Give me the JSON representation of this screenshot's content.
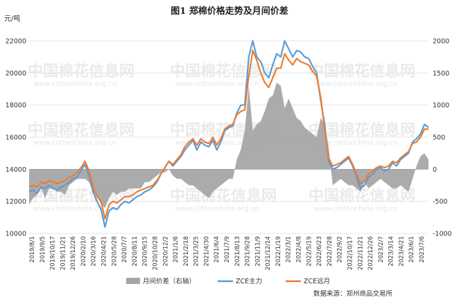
{
  "chart_data": {
    "type": "line",
    "title": "图1  郑棉价格走势及月间价差",
    "left_unit": "元/吨",
    "source": "数据来源：郑州商品交易所",
    "watermark": {
      "name": "中国棉花信息网",
      "url": "www.cottonchina.org.cn"
    },
    "y_left": {
      "ylim": [
        10000,
        22000
      ],
      "ticks": [
        "10000",
        "12000",
        "14000",
        "16000",
        "18000",
        "20000",
        "22000"
      ]
    },
    "y_right": {
      "ylim": [
        -1000,
        2000
      ],
      "ticks": [
        "-1000",
        "-500",
        "0",
        "500",
        "1000",
        "1500",
        "2000"
      ]
    },
    "x_ticks": [
      "2019/8/1",
      "2019/9/5",
      "2019/10/17",
      "2019/11/21",
      "2019/12/26",
      "2020/2/10",
      "2020/3/16",
      "2020/4/21",
      "2020/5/28",
      "2020/7/7",
      "2020/8/11",
      "2020/9/15",
      "2020/10/28",
      "2020/12/2",
      "2021/1/6",
      "2021/2/18",
      "2021/3/25",
      "2021/4/30",
      "2021/6/4",
      "2021/7/9",
      "2021/8/13",
      "2021/9/28",
      "2021/11/9",
      "2021/12/14",
      "2022/1/19",
      "2022/3/1",
      "2022/4/8",
      "2022/5/19",
      "2022/6/23",
      "2022/7/28",
      "2022/9/2",
      "2022/10/17",
      "2022/11/21",
      "2022/12/26",
      "2023/2/7",
      "2023/3/14",
      "2023/4/21",
      "2023/6/1",
      "2023/7/6"
    ],
    "legend": [
      "月间价差（右轴）",
      "ZCE主力",
      "ZCE远月"
    ],
    "colors": {
      "spread": "#a6a6a6",
      "main": "#5b9bd5",
      "far": "#ed7d31"
    },
    "x_range": [
      0,
      100
    ],
    "series": [
      {
        "name": "ZCE主力",
        "axis": "left",
        "points": [
          [
            0,
            12600
          ],
          [
            1,
            12700
          ],
          [
            2,
            12500
          ],
          [
            3,
            12900
          ],
          [
            4,
            12800
          ],
          [
            5,
            13000
          ],
          [
            6,
            12800
          ],
          [
            7,
            12700
          ],
          [
            8,
            12900
          ],
          [
            9,
            13000
          ],
          [
            10,
            13200
          ],
          [
            11,
            13400
          ],
          [
            12,
            13500
          ],
          [
            13,
            13900
          ],
          [
            14,
            14300
          ],
          [
            15,
            13600
          ],
          [
            16,
            12600
          ],
          [
            17,
            12000
          ],
          [
            18,
            11500
          ],
          [
            19,
            10400
          ],
          [
            20,
            11400
          ],
          [
            21,
            11600
          ],
          [
            22,
            11500
          ],
          [
            23,
            11800
          ],
          [
            24,
            12000
          ],
          [
            25,
            11900
          ],
          [
            26,
            12100
          ],
          [
            27,
            12300
          ],
          [
            28,
            12400
          ],
          [
            29,
            12600
          ],
          [
            30,
            12700
          ],
          [
            31,
            12900
          ],
          [
            32,
            13200
          ],
          [
            33,
            13700
          ],
          [
            34,
            14100
          ],
          [
            35,
            14500
          ],
          [
            36,
            14200
          ],
          [
            37,
            14500
          ],
          [
            38,
            14800
          ],
          [
            39,
            15200
          ],
          [
            40,
            15500
          ],
          [
            41,
            15800
          ],
          [
            42,
            15200
          ],
          [
            43,
            15700
          ],
          [
            44,
            15500
          ],
          [
            45,
            15400
          ],
          [
            46,
            15800
          ],
          [
            47,
            15200
          ],
          [
            48,
            15700
          ],
          [
            49,
            16400
          ],
          [
            50,
            16600
          ],
          [
            51,
            16700
          ],
          [
            52,
            17500
          ],
          [
            53,
            18000
          ],
          [
            54,
            18000
          ],
          [
            55,
            21000
          ],
          [
            56,
            22000
          ],
          [
            57,
            21000
          ],
          [
            58,
            20700
          ],
          [
            59,
            20000
          ],
          [
            60,
            19700
          ],
          [
            61,
            20500
          ],
          [
            62,
            21200
          ],
          [
            63,
            21000
          ],
          [
            64,
            22000
          ],
          [
            65,
            21500
          ],
          [
            66,
            21000
          ],
          [
            67,
            21400
          ],
          [
            68,
            21300
          ],
          [
            69,
            21000
          ],
          [
            70,
            20900
          ],
          [
            71,
            20400
          ],
          [
            72,
            20000
          ],
          [
            73,
            18300
          ],
          [
            74,
            16800
          ],
          [
            75,
            14500
          ],
          [
            76,
            14000
          ],
          [
            77,
            14100
          ],
          [
            78,
            14300
          ],
          [
            79,
            14500
          ],
          [
            80,
            14700
          ],
          [
            81,
            14200
          ],
          [
            82,
            13500
          ],
          [
            83,
            12800
          ],
          [
            84,
            13000
          ],
          [
            85,
            13500
          ],
          [
            86,
            13700
          ],
          [
            87,
            14000
          ],
          [
            88,
            14100
          ],
          [
            89,
            13900
          ],
          [
            90,
            14000
          ],
          [
            91,
            14400
          ],
          [
            92,
            14200
          ],
          [
            93,
            14600
          ],
          [
            94,
            14800
          ],
          [
            95,
            15000
          ],
          [
            96,
            15700
          ],
          [
            97,
            15900
          ],
          [
            98,
            16200
          ],
          [
            99,
            16800
          ],
          [
            100,
            16600
          ]
        ]
      },
      {
        "name": "ZCE远月",
        "axis": "left",
        "points": [
          [
            0,
            12900
          ],
          [
            1,
            13000
          ],
          [
            2,
            12900
          ],
          [
            3,
            13200
          ],
          [
            4,
            13100
          ],
          [
            5,
            13300
          ],
          [
            6,
            13200
          ],
          [
            7,
            13100
          ],
          [
            8,
            13200
          ],
          [
            9,
            13300
          ],
          [
            10,
            13500
          ],
          [
            11,
            13600
          ],
          [
            12,
            13800
          ],
          [
            13,
            14100
          ],
          [
            14,
            14500
          ],
          [
            15,
            13900
          ],
          [
            16,
            12900
          ],
          [
            17,
            12300
          ],
          [
            18,
            12000
          ],
          [
            19,
            10900
          ],
          [
            20,
            11800
          ],
          [
            21,
            12000
          ],
          [
            22,
            11900
          ],
          [
            23,
            12100
          ],
          [
            24,
            12300
          ],
          [
            25,
            12300
          ],
          [
            26,
            12400
          ],
          [
            27,
            12600
          ],
          [
            28,
            12700
          ],
          [
            29,
            12800
          ],
          [
            30,
            12900
          ],
          [
            31,
            13000
          ],
          [
            32,
            13300
          ],
          [
            33,
            13700
          ],
          [
            34,
            14100
          ],
          [
            35,
            14500
          ],
          [
            36,
            14300
          ],
          [
            37,
            14600
          ],
          [
            38,
            14900
          ],
          [
            39,
            15400
          ],
          [
            40,
            15700
          ],
          [
            41,
            15900
          ],
          [
            42,
            15500
          ],
          [
            43,
            15900
          ],
          [
            44,
            15700
          ],
          [
            45,
            15600
          ],
          [
            46,
            16000
          ],
          [
            47,
            15500
          ],
          [
            48,
            15900
          ],
          [
            49,
            16500
          ],
          [
            50,
            16700
          ],
          [
            51,
            16800
          ],
          [
            52,
            17400
          ],
          [
            53,
            17600
          ],
          [
            54,
            17700
          ],
          [
            55,
            19800
          ],
          [
            56,
            21400
          ],
          [
            57,
            20800
          ],
          [
            58,
            20000
          ],
          [
            59,
            19400
          ],
          [
            60,
            19100
          ],
          [
            61,
            19700
          ],
          [
            62,
            20300
          ],
          [
            63,
            20300
          ],
          [
            64,
            21200
          ],
          [
            65,
            20800
          ],
          [
            66,
            20500
          ],
          [
            67,
            20900
          ],
          [
            68,
            20700
          ],
          [
            69,
            20600
          ],
          [
            70,
            20500
          ],
          [
            71,
            20100
          ],
          [
            72,
            19800
          ],
          [
            73,
            18500
          ],
          [
            74,
            16500
          ],
          [
            75,
            14700
          ],
          [
            76,
            14200
          ],
          [
            77,
            14300
          ],
          [
            78,
            14400
          ],
          [
            79,
            14600
          ],
          [
            80,
            14800
          ],
          [
            81,
            14300
          ],
          [
            82,
            13700
          ],
          [
            83,
            13100
          ],
          [
            84,
            13300
          ],
          [
            85,
            13700
          ],
          [
            86,
            13900
          ],
          [
            87,
            14100
          ],
          [
            88,
            14200
          ],
          [
            89,
            14100
          ],
          [
            90,
            14200
          ],
          [
            91,
            14500
          ],
          [
            92,
            14400
          ],
          [
            93,
            14700
          ],
          [
            94,
            14900
          ],
          [
            95,
            15100
          ],
          [
            96,
            15600
          ],
          [
            97,
            15700
          ],
          [
            98,
            16000
          ],
          [
            99,
            16500
          ],
          [
            100,
            16500
          ]
        ]
      },
      {
        "name": "月间价差（右轴）",
        "axis": "right",
        "points": [
          [
            0,
            -550
          ],
          [
            1,
            -450
          ],
          [
            2,
            -400
          ],
          [
            3,
            -300
          ],
          [
            4,
            -450
          ],
          [
            5,
            -300
          ],
          [
            6,
            -300
          ],
          [
            7,
            -350
          ],
          [
            8,
            -350
          ],
          [
            9,
            -400
          ],
          [
            10,
            -250
          ],
          [
            11,
            -200
          ],
          [
            12,
            -150
          ],
          [
            13,
            -150
          ],
          [
            14,
            -150
          ],
          [
            15,
            -200
          ],
          [
            16,
            -350
          ],
          [
            17,
            -400
          ],
          [
            18,
            -550
          ],
          [
            19,
            -600
          ],
          [
            20,
            -450
          ],
          [
            21,
            -350
          ],
          [
            22,
            -400
          ],
          [
            23,
            -350
          ],
          [
            24,
            -350
          ],
          [
            25,
            -300
          ],
          [
            26,
            -300
          ],
          [
            27,
            -300
          ],
          [
            28,
            -300
          ],
          [
            29,
            -200
          ],
          [
            30,
            -200
          ],
          [
            31,
            -150
          ],
          [
            32,
            -100
          ],
          [
            33,
            -50
          ],
          [
            34,
            -50
          ],
          [
            35,
            0
          ],
          [
            36,
            -100
          ],
          [
            37,
            -150
          ],
          [
            38,
            -150
          ],
          [
            39,
            -200
          ],
          [
            40,
            -250
          ],
          [
            41,
            -250
          ],
          [
            42,
            -300
          ],
          [
            43,
            -350
          ],
          [
            44,
            -400
          ],
          [
            45,
            -450
          ],
          [
            46,
            -350
          ],
          [
            47,
            -300
          ],
          [
            48,
            -250
          ],
          [
            49,
            -200
          ],
          [
            50,
            -150
          ],
          [
            51,
            -150
          ],
          [
            52,
            150
          ],
          [
            53,
            300
          ],
          [
            54,
            600
          ],
          [
            55,
            1300
          ],
          [
            56,
            600
          ],
          [
            57,
            700
          ],
          [
            58,
            750
          ],
          [
            59,
            900
          ],
          [
            60,
            1100
          ],
          [
            61,
            1150
          ],
          [
            62,
            1350
          ],
          [
            63,
            1300
          ],
          [
            64,
            950
          ],
          [
            65,
            1100
          ],
          [
            66,
            950
          ],
          [
            67,
            800
          ],
          [
            68,
            750
          ],
          [
            69,
            650
          ],
          [
            70,
            600
          ],
          [
            71,
            550
          ],
          [
            72,
            500
          ],
          [
            73,
            800
          ],
          [
            74,
            700
          ],
          [
            75,
            350
          ],
          [
            76,
            -250
          ],
          [
            77,
            -200
          ],
          [
            78,
            -150
          ],
          [
            79,
            -200
          ],
          [
            80,
            -250
          ],
          [
            81,
            -250
          ],
          [
            82,
            -300
          ],
          [
            83,
            -350
          ],
          [
            84,
            -200
          ],
          [
            85,
            -300
          ],
          [
            86,
            -250
          ],
          [
            87,
            -200
          ],
          [
            88,
            -150
          ],
          [
            89,
            -200
          ],
          [
            90,
            -250
          ],
          [
            91,
            -300
          ],
          [
            92,
            -300
          ],
          [
            93,
            -250
          ],
          [
            94,
            -300
          ],
          [
            95,
            -350
          ],
          [
            96,
            -150
          ],
          [
            97,
            50
          ],
          [
            98,
            200
          ],
          [
            99,
            250
          ],
          [
            100,
            150
          ]
        ]
      }
    ]
  }
}
